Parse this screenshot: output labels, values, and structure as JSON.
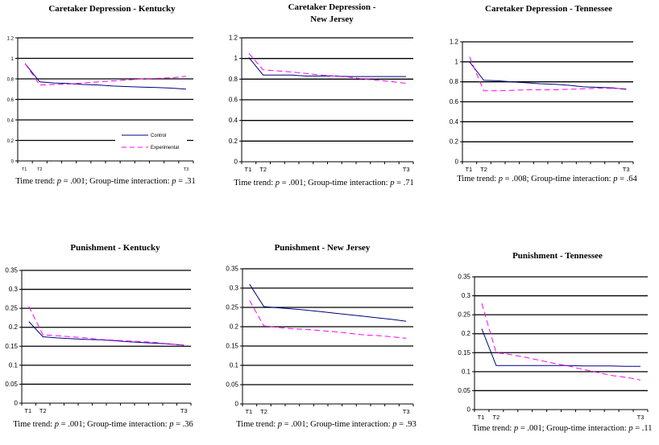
{
  "colors": {
    "control": "#000080",
    "experimental": "#FF00FF"
  },
  "caption_labels": {
    "trend": "Time trend: ",
    "interaction": "; Group-time interaction: ",
    "p": "p",
    "eq": " = "
  },
  "chart_data": [
    {
      "type": "line",
      "title_lines": [
        "Caretaker Depression - Kentucky"
      ],
      "categories": [
        "T1",
        "T2",
        "",
        "",
        "",
        "",
        "",
        "",
        "",
        "",
        "",
        "T3"
      ],
      "ylim": [
        0,
        1.2
      ],
      "y_ticks": [
        "0",
        "0.2",
        "0.4",
        "0.6",
        "0.8",
        "1",
        "1.2"
      ],
      "y_tick_values": [
        0,
        0.2,
        0.4,
        0.6,
        0.8,
        1,
        1.2
      ],
      "grid": true,
      "legend": {
        "placement": "bottom-right",
        "entries": [
          "Control",
          "Experimental"
        ]
      },
      "series": [
        {
          "name": "Control",
          "style": "solid",
          "values": [
            0.95,
            0.77,
            0.76,
            0.755,
            0.745,
            0.74,
            0.73,
            0.725,
            0.72,
            0.715,
            0.71,
            0.7
          ]
        },
        {
          "name": "Experimental",
          "style": "dashed",
          "values": [
            0.95,
            0.74,
            0.745,
            0.75,
            0.76,
            0.77,
            0.78,
            0.79,
            0.8,
            0.805,
            0.81,
            0.825
          ]
        }
      ],
      "caption": {
        "trend_p": ".001",
        "interaction_p": ".31"
      }
    },
    {
      "type": "line",
      "title_lines": [
        "Caretaker Depression -",
        "New Jersey"
      ],
      "categories": [
        "T1",
        "T2",
        "",
        "",
        "",
        "",
        "",
        "",
        "",
        "",
        "",
        "T3"
      ],
      "ylim": [
        0,
        1.2
      ],
      "y_ticks": [
        "0",
        "0.2",
        "0.4",
        "0.6",
        "0.8",
        "1",
        "1.2"
      ],
      "y_tick_values": [
        0,
        0.2,
        0.4,
        0.6,
        0.8,
        1,
        1.2
      ],
      "grid": true,
      "series": [
        {
          "name": "Control",
          "style": "solid",
          "values": [
            1.01,
            0.84,
            0.84,
            0.84,
            0.83,
            0.83,
            0.83,
            0.825,
            0.825,
            0.825,
            0.825,
            0.825
          ]
        },
        {
          "name": "Experimental",
          "style": "dashed",
          "values": [
            1.05,
            0.89,
            0.88,
            0.87,
            0.855,
            0.84,
            0.83,
            0.82,
            0.8,
            0.79,
            0.775,
            0.76
          ]
        }
      ],
      "caption": {
        "trend_p": ".001",
        "interaction_p": ".71"
      }
    },
    {
      "type": "line",
      "title_lines": [
        "Caretaker Depression - Tennessee"
      ],
      "categories": [
        "T1",
        "T2",
        "",
        "",
        "",
        "",
        "",
        "",
        "",
        "",
        "",
        "T3"
      ],
      "ylim": [
        0,
        1.2
      ],
      "y_ticks": [
        "0",
        "0.2",
        "0.4",
        "0.6",
        "0.8",
        "1",
        "1.2"
      ],
      "y_tick_values": [
        0,
        0.2,
        0.4,
        0.6,
        0.8,
        1,
        1.2
      ],
      "grid": true,
      "series": [
        {
          "name": "Control",
          "style": "solid",
          "values": [
            1.0,
            0.815,
            0.81,
            0.8,
            0.79,
            0.78,
            0.775,
            0.765,
            0.75,
            0.745,
            0.74,
            0.725
          ]
        },
        {
          "name": "Experimental",
          "style": "dashed",
          "values": [
            1.05,
            0.71,
            0.71,
            0.715,
            0.72,
            0.72,
            0.72,
            0.725,
            0.73,
            0.735,
            0.735,
            0.73
          ]
        }
      ],
      "caption": {
        "trend_p": ".008",
        "interaction_p": ".64"
      }
    },
    {
      "type": "line",
      "title_lines": [
        "Punishment - Kentucky"
      ],
      "categories": [
        "T1",
        "T2",
        "",
        "",
        "",
        "",
        "",
        "",
        "",
        "",
        "",
        "T3"
      ],
      "ylim": [
        0,
        0.35
      ],
      "y_ticks": [
        "0",
        "0.05",
        "0.1",
        "0.15",
        "0.2",
        "0.25",
        "0.3",
        "0.35"
      ],
      "y_tick_values": [
        0,
        0.05,
        0.1,
        0.15,
        0.2,
        0.25,
        0.3,
        0.35
      ],
      "grid": true,
      "series": [
        {
          "name": "Control",
          "style": "solid",
          "values": [
            0.215,
            0.175,
            0.172,
            0.17,
            0.168,
            0.167,
            0.165,
            0.162,
            0.16,
            0.158,
            0.156,
            0.153
          ]
        },
        {
          "name": "Experimental",
          "style": "dashed",
          "values": [
            0.255,
            0.18,
            0.178,
            0.175,
            0.172,
            0.168,
            0.166,
            0.164,
            0.162,
            0.16,
            0.156,
            0.153
          ]
        }
      ],
      "caption": {
        "trend_p": ".001",
        "interaction_p": ".36"
      }
    },
    {
      "type": "line",
      "title_lines": [
        "Punishment - New Jersey"
      ],
      "categories": [
        "T1",
        "T2",
        "",
        "",
        "",
        "",
        "",
        "",
        "",
        "",
        "",
        "T3"
      ],
      "ylim": [
        0,
        0.35
      ],
      "y_ticks": [
        "0",
        "0.05",
        "0.1",
        "0.15",
        "0.2",
        "0.25",
        "0.3",
        "0.35"
      ],
      "y_tick_values": [
        0,
        0.05,
        0.1,
        0.15,
        0.2,
        0.25,
        0.3,
        0.35
      ],
      "grid": true,
      "series": [
        {
          "name": "Control",
          "style": "solid",
          "values": [
            0.31,
            0.252,
            0.249,
            0.246,
            0.243,
            0.239,
            0.235,
            0.231,
            0.227,
            0.223,
            0.219,
            0.214
          ]
        },
        {
          "name": "Experimental",
          "style": "dashed",
          "values": [
            0.268,
            0.202,
            0.198,
            0.195,
            0.193,
            0.19,
            0.187,
            0.183,
            0.179,
            0.177,
            0.174,
            0.17
          ]
        }
      ],
      "caption": {
        "trend_p": ".001",
        "interaction_p": ".93"
      }
    },
    {
      "type": "line",
      "title_lines": [
        "Punishment - Tennessee"
      ],
      "categories": [
        "T1",
        "T2",
        "",
        "",
        "",
        "",
        "",
        "",
        "",
        "",
        "",
        "T3"
      ],
      "ylim": [
        0,
        0.35
      ],
      "y_ticks": [
        "0",
        "0.05",
        "0.1",
        "0.15",
        "0.2",
        "0.25",
        "0.3",
        "0.35"
      ],
      "y_tick_values": [
        0,
        0.05,
        0.1,
        0.15,
        0.2,
        0.25,
        0.3,
        0.35
      ],
      "grid": true,
      "series": [
        {
          "name": "Control",
          "style": "solid",
          "values": [
            0.213,
            0.116,
            0.116,
            0.116,
            0.116,
            0.116,
            0.116,
            0.115,
            0.115,
            0.115,
            0.114,
            0.114
          ]
        },
        {
          "name": "Experimental",
          "style": "dashed",
          "values": [
            0.28,
            0.15,
            0.145,
            0.138,
            0.13,
            0.122,
            0.115,
            0.106,
            0.098,
            0.09,
            0.085,
            0.078
          ]
        }
      ],
      "caption": {
        "trend_p": ".001",
        "interaction_p": ".11"
      }
    }
  ]
}
